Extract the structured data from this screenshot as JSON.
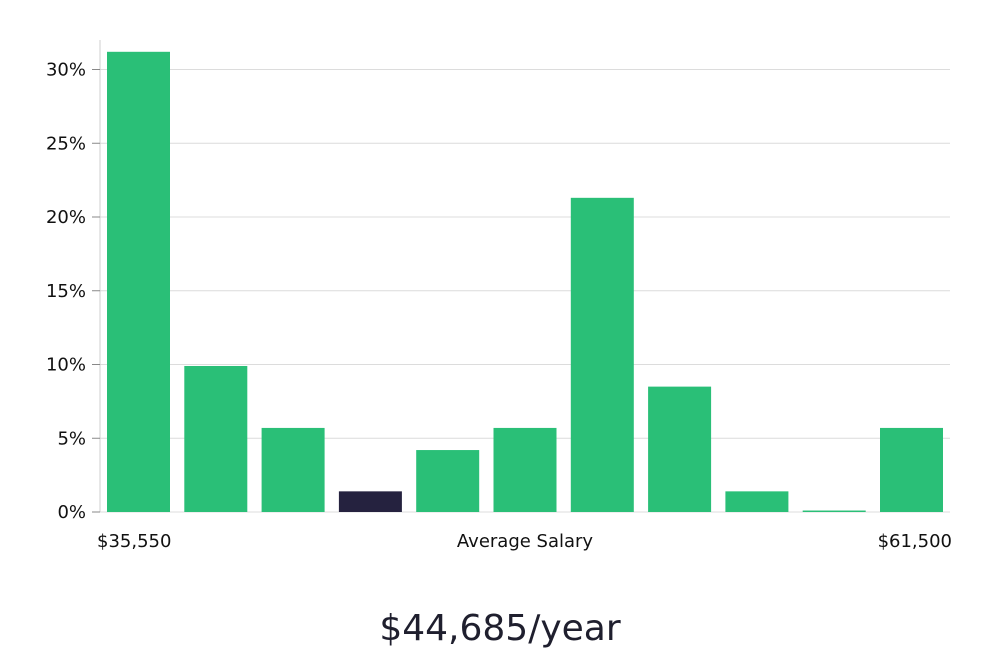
{
  "chart_data": {
    "type": "bar",
    "title": "",
    "xlabel": "Average Salary",
    "ylabel": "",
    "x_range_labels": {
      "min": "$35,550",
      "max": "$61,500"
    },
    "ylim": [
      0,
      32
    ],
    "yticks": [
      0,
      5,
      10,
      15,
      20,
      25,
      30
    ],
    "ytick_labels": [
      "0%",
      "5%",
      "10%",
      "15%",
      "20%",
      "25%",
      "30%"
    ],
    "grid": true,
    "legend": "none",
    "values": [
      31.2,
      9.9,
      5.7,
      1.4,
      4.2,
      5.7,
      21.3,
      8.5,
      1.4,
      0.1,
      5.7
    ],
    "highlight_index": 3,
    "colors": {
      "bar": "#2abf77",
      "highlight": "#25223f",
      "grid": "#dcdcdc",
      "axis": "#cfcfcf"
    }
  },
  "summary": {
    "salary": "$44,685/year"
  }
}
